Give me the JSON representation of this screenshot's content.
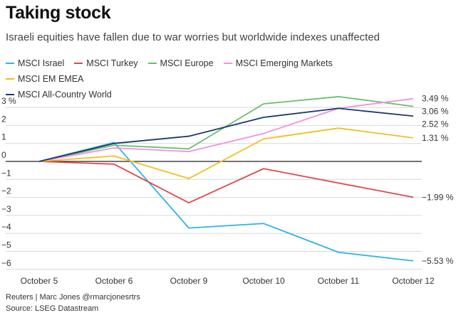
{
  "header": {
    "title": "Taking stock",
    "subtitle": "Israeli equities have fallen due to war worries but worldwide indexes unaffected"
  },
  "footer": {
    "credit": "Reuters | Marc Jones @rmarcjonesrtrs",
    "source": "Source: LSEG Datastream"
  },
  "chart_data": {
    "type": "line",
    "title": "Taking stock",
    "xlabel": "",
    "ylabel": "",
    "categories": [
      "October 5",
      "October 6",
      "October 9",
      "October 10",
      "October 11",
      "October 12"
    ],
    "ylim": [
      -6.5,
      3.5
    ],
    "yticks": [
      -6,
      -5,
      -4,
      -3,
      -2,
      -1,
      0,
      1,
      2,
      3
    ],
    "ytick_labels": [
      "−6",
      "−5",
      "−4",
      "−3",
      "−2",
      "−1",
      "0",
      "1",
      "2",
      "3 %"
    ],
    "series": [
      {
        "name": "MSCI Israel",
        "color": "#2eb4e6",
        "values": [
          0,
          1.05,
          -3.7,
          -3.45,
          -5.05,
          -5.53
        ],
        "end_label": "−5.53 %"
      },
      {
        "name": "MSCI Turkey",
        "color": "#e0464b",
        "values": [
          0,
          -0.15,
          -2.3,
          -0.4,
          -1.2,
          -1.99
        ],
        "end_label": "−1.99 %"
      },
      {
        "name": "MSCI Europe",
        "color": "#6abf69",
        "values": [
          0,
          0.9,
          0.7,
          3.2,
          3.6,
          3.06
        ],
        "end_label": "3.06 %"
      },
      {
        "name": "MSCI Emerging Markets",
        "color": "#f48fe0",
        "values": [
          0,
          0.75,
          0.55,
          1.55,
          2.95,
          3.49
        ],
        "end_label": "3.49 %"
      },
      {
        "name": "MSCI EM EMEA",
        "color": "#f5bd1f",
        "values": [
          0,
          0.3,
          -0.95,
          1.25,
          1.85,
          1.31
        ],
        "end_label": "1.31 %"
      },
      {
        "name": "MSCI All-Country World",
        "color": "#1a3a6e",
        "values": [
          0,
          1.0,
          1.4,
          2.45,
          2.95,
          2.52
        ],
        "end_label": "2.52 %"
      }
    ]
  }
}
